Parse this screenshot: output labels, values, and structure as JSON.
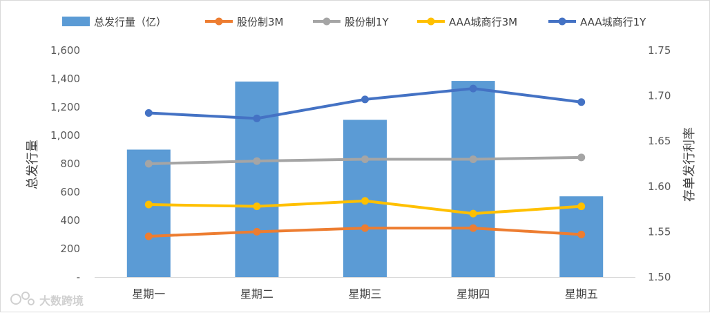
{
  "chart_data": {
    "type": "bar+line",
    "categories": [
      "星期一",
      "星期二",
      "星期三",
      "星期四",
      "星期五"
    ],
    "bar_series": {
      "name": "总发行量（亿）",
      "axis": "left",
      "values": [
        900,
        1380,
        1110,
        1385,
        570
      ],
      "color": "#5b9bd5"
    },
    "line_series": [
      {
        "name": "股份制3M",
        "axis": "right",
        "values": [
          1.545,
          1.55,
          1.554,
          1.554,
          1.547
        ],
        "color": "#ed7d31"
      },
      {
        "name": "股份制1Y",
        "axis": "right",
        "values": [
          1.625,
          1.628,
          1.63,
          1.63,
          1.632
        ],
        "color": "#a5a5a5"
      },
      {
        "name": "AAA城商行3M",
        "axis": "right",
        "values": [
          1.58,
          1.578,
          1.584,
          1.57,
          1.578
        ],
        "color": "#ffc000"
      },
      {
        "name": "AAA城商行1Y",
        "axis": "right",
        "values": [
          1.681,
          1.675,
          1.696,
          1.708,
          1.693
        ],
        "color": "#4472c4"
      }
    ],
    "left_axis": {
      "label": "总发行量",
      "ylim": [
        0,
        1600
      ],
      "tick_labels": [
        "-",
        "200",
        "400",
        "600",
        "800",
        "1,000",
        "1,200",
        "1,400",
        "1,600"
      ]
    },
    "right_axis": {
      "label": "存单发行利率",
      "ylim": [
        1.5,
        1.75
      ],
      "tick_labels": [
        "1.50",
        "1.55",
        "1.60",
        "1.65",
        "1.70",
        "1.75"
      ]
    },
    "legend_position": "top",
    "grid": false
  },
  "watermark": {
    "text": "大数跨境"
  }
}
